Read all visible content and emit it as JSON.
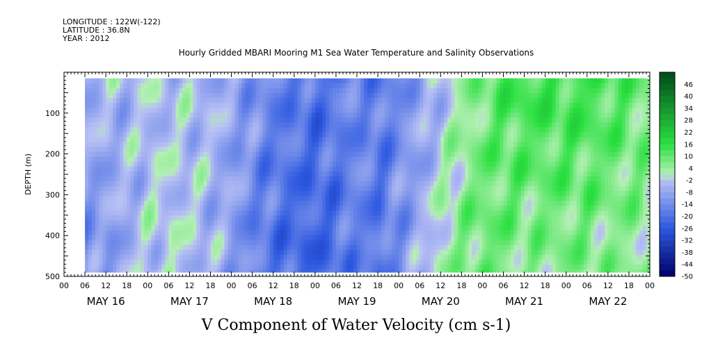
{
  "header": {
    "longitude": "LONGITUDE : 122W(-122)",
    "latitude": "LATITUDE : 36.8N",
    "year": "YEAR : 2012"
  },
  "chart_data": {
    "type": "heatmap",
    "title": "Hourly Gridded MBARI Mooring M1 Sea Water Temperature and Salinity Observations",
    "xlabel": "V Component of Water Velocity (cm s-1)",
    "ylabel": "DEPTH (m)",
    "y_axis": {
      "ticks": [
        100,
        200,
        300,
        400,
        500
      ],
      "range": [
        0,
        500
      ],
      "inverted": true
    },
    "x_axis": {
      "hour_ticks": [
        "00",
        "06",
        "12",
        "18",
        "00",
        "06",
        "12",
        "18",
        "00",
        "06",
        "12",
        "18",
        "00",
        "06",
        "12",
        "18",
        "00",
        "06",
        "12",
        "18",
        "00",
        "06",
        "12",
        "18",
        "00",
        "06",
        "12",
        "18",
        "00"
      ],
      "dates": [
        "MAY 16",
        "MAY 17",
        "MAY 18",
        "MAY 19",
        "MAY 20",
        "MAY 21",
        "MAY 22"
      ],
      "range_hours": [
        0,
        168
      ]
    },
    "colorbar": {
      "labels": [
        "46",
        "40",
        "34",
        "28",
        "22",
        "16",
        "10",
        "4",
        "-2",
        "-8",
        "-14",
        "-20",
        "-26",
        "-32",
        "-38",
        "-44",
        "-50"
      ],
      "range": [
        -50,
        52
      ],
      "colors": {
        "neg_dark": "#000066",
        "neg_mid": "#2c58e0",
        "neg_light": "#b8c0f4",
        "pos_light": "#b4f0b4",
        "pos_mid": "#2ae040",
        "pos_dark": "#004a1c"
      }
    },
    "data_coverage": {
      "start_hour": 6,
      "end_hour": 168,
      "top_depth_m": 15,
      "bottom_depth_m": 490
    },
    "velocity_profile": {
      "hours": [
        6,
        12,
        18,
        24,
        30,
        36,
        42,
        48,
        54,
        60,
        66,
        72,
        78,
        84,
        90,
        96,
        102,
        108,
        114,
        120,
        126,
        132,
        138,
        144,
        150,
        156,
        162,
        168
      ],
      "upper_cm_s": [
        -6,
        -4,
        -5,
        -3,
        -4,
        -3,
        -5,
        -8,
        -12,
        -16,
        -18,
        -20,
        -17,
        -14,
        -18,
        -13,
        -9,
        -3,
        3,
        8,
        12,
        14,
        14,
        13,
        14,
        12,
        10,
        6
      ],
      "lower_cm_s": [
        -12,
        -11,
        -6,
        -2,
        -1,
        -3,
        -5,
        -10,
        -16,
        -20,
        -22,
        -23,
        -20,
        -16,
        -19,
        -12,
        -6,
        2,
        6,
        9,
        8,
        5,
        6,
        7,
        6,
        5,
        5,
        4
      ]
    }
  }
}
